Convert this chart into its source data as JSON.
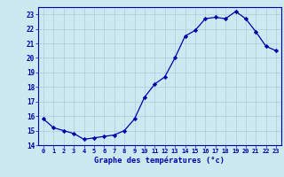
{
  "hours": [
    0,
    1,
    2,
    3,
    4,
    5,
    6,
    7,
    8,
    9,
    10,
    11,
    12,
    13,
    14,
    15,
    16,
    17,
    18,
    19,
    20,
    21,
    22,
    23
  ],
  "temps": [
    15.8,
    15.2,
    15.0,
    14.8,
    14.4,
    14.5,
    14.6,
    14.7,
    15.0,
    15.8,
    17.3,
    18.2,
    18.7,
    20.0,
    21.5,
    21.9,
    22.7,
    22.8,
    22.7,
    23.2,
    22.7,
    21.8,
    20.8,
    20.5
  ],
  "xlabel": "Graphe des températures (°c)",
  "ylim": [
    14,
    23.5
  ],
  "xlim": [
    -0.5,
    23.5
  ],
  "yticks": [
    14,
    15,
    16,
    17,
    18,
    19,
    20,
    21,
    22,
    23
  ],
  "xticks": [
    0,
    1,
    2,
    3,
    4,
    5,
    6,
    7,
    8,
    9,
    10,
    11,
    12,
    13,
    14,
    15,
    16,
    17,
    18,
    19,
    20,
    21,
    22,
    23
  ],
  "line_color": "#0000aa",
  "marker_color": "#0000aa",
  "bg_color": "#cce8f0",
  "grid_color": "#aaccdd",
  "axis_color": "#0000aa",
  "tick_color": "#0000aa",
  "label_color": "#0000aa"
}
